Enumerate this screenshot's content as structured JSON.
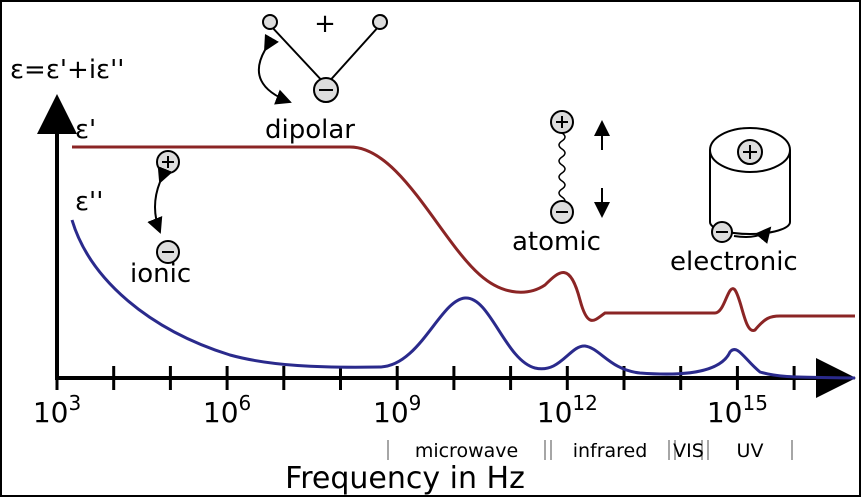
{
  "formula": "ε=ε'+iε''",
  "curves": {
    "real": "ε'",
    "imaginary": "ε''"
  },
  "mechanisms": {
    "dipolar": "dipolar",
    "dipolar_sign": "+",
    "ionic": "ionic",
    "atomic": "atomic",
    "electronic": "electronic"
  },
  "x_ticks": [
    {
      "base": "10",
      "exp": "3"
    },
    {
      "base": "10",
      "exp": "6"
    },
    {
      "base": "10",
      "exp": "9"
    },
    {
      "base": "10",
      "exp": "12"
    },
    {
      "base": "10",
      "exp": "15"
    }
  ],
  "bands": [
    "microwave",
    "infrared",
    "VIS",
    "UV"
  ],
  "x_axis_title": "Frequency in Hz"
}
